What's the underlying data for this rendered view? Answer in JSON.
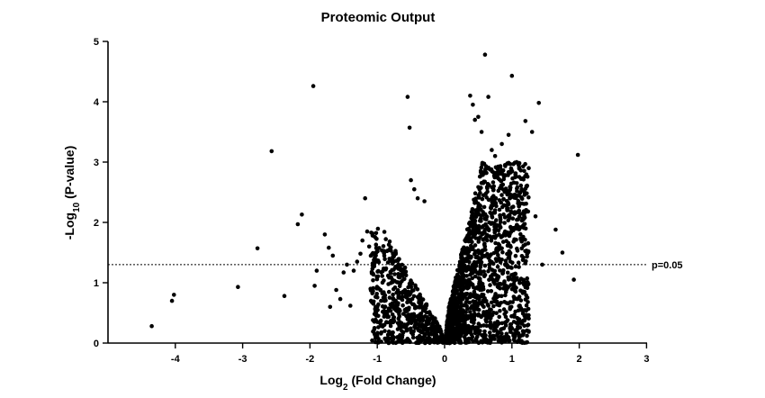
{
  "chart_data": {
    "type": "scatter",
    "title": "Proteomic Output",
    "xlabel_main": "Log",
    "xlabel_sub": "2",
    "xlabel_rest": " (Fold Change)",
    "ylabel_main": "-Log",
    "ylabel_sub": "10",
    "ylabel_rest": " (P-value)",
    "xlim": [
      -4.8,
      3
    ],
    "ylim": [
      0,
      5
    ],
    "xticks": [
      -4,
      -3,
      -2,
      -1,
      0,
      1,
      2,
      3
    ],
    "yticks": [
      0,
      1,
      2,
      3,
      4,
      5
    ],
    "threshold": {
      "y": 1.3,
      "label": "p=0.05",
      "style": "dotted"
    },
    "marker_color": "#000000",
    "grid": false,
    "legend": "none",
    "points_x": [
      -4.35,
      -4.05,
      -4.02,
      -3.07,
      -2.78,
      -2.57,
      -2.38,
      -2.18,
      -2.12,
      -1.95,
      -1.93,
      -1.9,
      -1.78,
      -1.72,
      -1.7,
      -1.66,
      -1.61,
      -1.55,
      -1.5,
      -1.45,
      -1.4,
      -1.35,
      -1.3,
      -1.25,
      -1.22,
      -1.18,
      -1.15,
      -1.12,
      -1.1,
      -0.55,
      -0.52,
      -0.5,
      -0.45,
      -0.4,
      -0.3,
      0.38,
      0.42,
      0.45,
      0.5,
      0.55,
      0.6,
      0.65,
      0.7,
      0.75,
      0.85,
      0.95,
      1.0,
      1.1,
      1.2,
      1.25,
      1.3,
      1.35,
      1.4,
      1.45,
      1.65,
      1.75,
      1.92,
      1.98
    ],
    "points_y": [
      0.28,
      0.7,
      0.8,
      0.93,
      1.57,
      3.18,
      0.78,
      1.97,
      2.13,
      4.26,
      0.95,
      1.2,
      1.8,
      1.58,
      0.6,
      1.45,
      0.88,
      0.73,
      1.17,
      1.3,
      0.62,
      1.2,
      1.35,
      1.48,
      1.7,
      2.4,
      1.85,
      1.6,
      0.9,
      4.08,
      3.57,
      2.7,
      2.55,
      2.4,
      2.35,
      4.1,
      3.95,
      3.7,
      3.75,
      3.5,
      4.78,
      4.08,
      3.2,
      3.1,
      3.3,
      3.45,
      4.43,
      2.95,
      3.68,
      2.9,
      3.5,
      2.1,
      3.98,
      1.3,
      1.88,
      1.5,
      1.05,
      3.12
    ],
    "dense_cluster_left": {
      "x_range": [
        -1.1,
        0
      ],
      "y_range": [
        0,
        1.9
      ],
      "approx_points": 600
    },
    "dense_cluster_right": {
      "x_range": [
        0,
        1.3
      ],
      "y_range": [
        0,
        3.0
      ],
      "approx_points": 1600
    }
  }
}
